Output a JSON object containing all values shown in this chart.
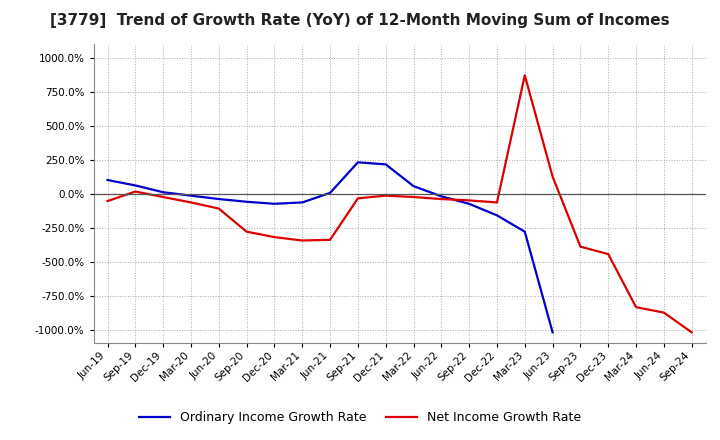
{
  "title": "[3779]  Trend of Growth Rate (YoY) of 12-Month Moving Sum of Incomes",
  "title_fontsize": 11,
  "background_color": "#ffffff",
  "plot_bg_color": "#ffffff",
  "grid_color": "#aaaaaa",
  "x_labels": [
    "Jun-19",
    "Sep-19",
    "Dec-19",
    "Mar-20",
    "Jun-20",
    "Sep-20",
    "Dec-20",
    "Mar-21",
    "Jun-21",
    "Sep-21",
    "Dec-21",
    "Mar-22",
    "Jun-22",
    "Sep-22",
    "Dec-22",
    "Mar-23",
    "Jun-23",
    "Sep-23",
    "Dec-23",
    "Mar-24",
    "Jun-24",
    "Sep-24"
  ],
  "ordinary_income": [
    100,
    60,
    10,
    -15,
    -40,
    -60,
    -75,
    -65,
    5,
    230,
    215,
    55,
    -20,
    -75,
    -160,
    -280,
    -1020,
    null,
    null,
    null,
    null,
    null
  ],
  "net_income": [
    -55,
    15,
    -25,
    -65,
    -110,
    -280,
    -320,
    -345,
    -340,
    -35,
    -15,
    -25,
    -40,
    -50,
    -65,
    870,
    125,
    -390,
    -445,
    -835,
    -875,
    -1020
  ],
  "ylim": [
    -1100,
    1100
  ],
  "yticks": [
    -1000,
    -750,
    -500,
    -250,
    0,
    250,
    500,
    750,
    1000
  ],
  "ordinary_color": "#0000cc",
  "net_color": "#dd0000",
  "legend_ordinary": "Ordinary Income Growth Rate",
  "legend_net": "Net Income Growth Rate",
  "line_width": 1.6
}
